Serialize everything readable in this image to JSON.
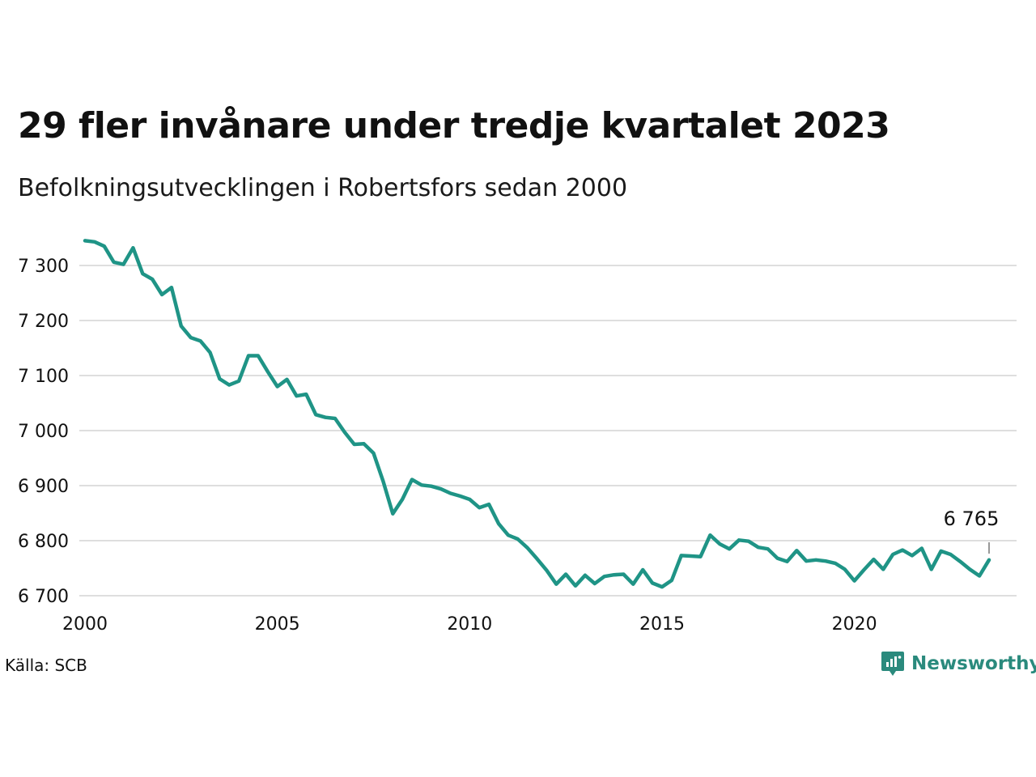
{
  "title": "29 fler invånare under tredje kvartalet 2023",
  "subtitle": "Befolkningsutvecklingen i Robertsfors sedan 2000",
  "source": "Källa: SCB",
  "brand": {
    "name": "Newsworthy",
    "icon": "newsworthy-logo-icon",
    "color": "#2a8a7d"
  },
  "chart_data": {
    "type": "line",
    "line_color": "#1f9486",
    "grid": true,
    "ylim": [
      6700,
      7300
    ],
    "yticks": [
      {
        "value": 7300,
        "label": "7 300"
      },
      {
        "value": 7200,
        "label": "7 200"
      },
      {
        "value": 7100,
        "label": "7 100"
      },
      {
        "value": 7000,
        "label": "7 000"
      },
      {
        "value": 6900,
        "label": "6 900"
      },
      {
        "value": 6800,
        "label": "6 800"
      },
      {
        "value": 6700,
        "label": "6 700"
      }
    ],
    "xticks": [
      {
        "value": 2000,
        "label": "2000"
      },
      {
        "value": 2005,
        "label": "2005"
      },
      {
        "value": 2010,
        "label": "2010"
      },
      {
        "value": 2015,
        "label": "2015"
      },
      {
        "value": 2020,
        "label": "2020"
      }
    ],
    "last_value_label": "6 765",
    "x": [
      "2000-Q1",
      "2000-Q2",
      "2000-Q3",
      "2000-Q4",
      "2001-Q1",
      "2001-Q2",
      "2001-Q3",
      "2001-Q4",
      "2002-Q1",
      "2002-Q2",
      "2002-Q3",
      "2002-Q4",
      "2003-Q1",
      "2003-Q2",
      "2003-Q3",
      "2003-Q4",
      "2004-Q1",
      "2004-Q2",
      "2004-Q3",
      "2004-Q4",
      "2005-Q1",
      "2005-Q2",
      "2005-Q3",
      "2005-Q4",
      "2006-Q1",
      "2006-Q2",
      "2006-Q3",
      "2006-Q4",
      "2007-Q1",
      "2007-Q2",
      "2007-Q3",
      "2007-Q4",
      "2008-Q1",
      "2008-Q2",
      "2008-Q3",
      "2008-Q4",
      "2009-Q1",
      "2009-Q2",
      "2009-Q3",
      "2009-Q4",
      "2010-Q1",
      "2010-Q2",
      "2010-Q3",
      "2010-Q4",
      "2011-Q1",
      "2011-Q2",
      "2011-Q3",
      "2011-Q4",
      "2012-Q1",
      "2012-Q2",
      "2012-Q3",
      "2012-Q4",
      "2013-Q1",
      "2013-Q2",
      "2013-Q3",
      "2013-Q4",
      "2014-Q1",
      "2014-Q2",
      "2014-Q3",
      "2014-Q4",
      "2015-Q1",
      "2015-Q2",
      "2015-Q3",
      "2015-Q4",
      "2016-Q1",
      "2016-Q2",
      "2016-Q3",
      "2016-Q4",
      "2017-Q1",
      "2017-Q2",
      "2017-Q3",
      "2017-Q4",
      "2018-Q1",
      "2018-Q2",
      "2018-Q3",
      "2018-Q4",
      "2019-Q1",
      "2019-Q2",
      "2019-Q3",
      "2019-Q4",
      "2020-Q1",
      "2020-Q2",
      "2020-Q3",
      "2020-Q4",
      "2021-Q1",
      "2021-Q2",
      "2021-Q3",
      "2021-Q4",
      "2022-Q1",
      "2022-Q2",
      "2022-Q3",
      "2022-Q4",
      "2023-Q1",
      "2023-Q2",
      "2023-Q3"
    ],
    "values": [
      7345,
      7343,
      7335,
      7306,
      7302,
      7332,
      7285,
      7275,
      7247,
      7260,
      7190,
      7169,
      7163,
      7142,
      7094,
      7083,
      7090,
      7136,
      7136,
      7107,
      7080,
      7093,
      7063,
      7066,
      7029,
      7024,
      7022,
      6997,
      6975,
      6976,
      6959,
      6908,
      6849,
      6875,
      6911,
      6901,
      6899,
      6894,
      6886,
      6881,
      6875,
      6860,
      6866,
      6831,
      6810,
      6803,
      6787,
      6767,
      6746,
      6721,
      6739,
      6718,
      6737,
      6722,
      6735,
      6738,
      6739,
      6721,
      6747,
      6723,
      6716,
      6728,
      6773,
      6772,
      6771,
      6810,
      6794,
      6785,
      6801,
      6799,
      6788,
      6785,
      6768,
      6762,
      6782,
      6763,
      6765,
      6763,
      6759,
      6748,
      6727,
      6747,
      6766,
      6748,
      6775,
      6783,
      6773,
      6786,
      6748,
      6781,
      6775,
      6762,
      6748,
      6736,
      6765
    ]
  }
}
